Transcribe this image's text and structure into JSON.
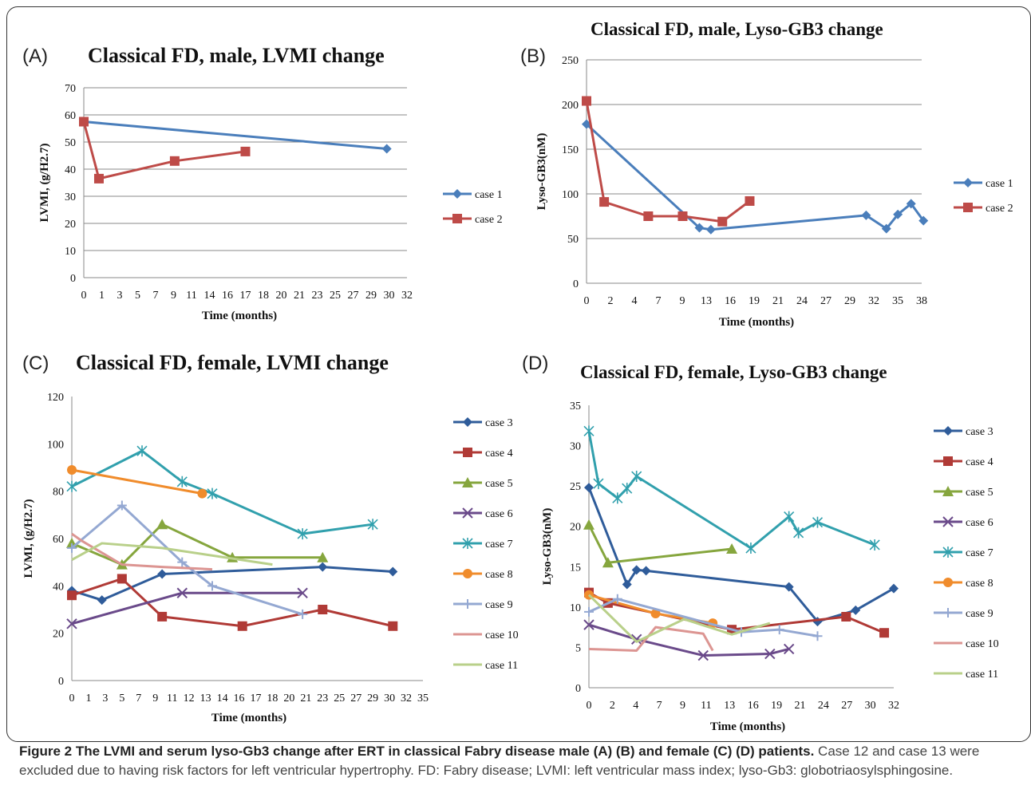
{
  "panels": [
    {
      "label": "(A)"
    },
    {
      "label": "(B)"
    },
    {
      "label": "(C)"
    },
    {
      "label": "(D)"
    }
  ],
  "caption": {
    "bold": "Figure 2 The LVMI and serum lyso-Gb3 change after ERT in classical Fabry disease male (A) (B) and female (C) (D) patients.",
    "text": " Case 12 and case 13 were excluded due to having risk factors for left ventricular hypertrophy. FD: Fabry disease; LVMI: left ventricular mass index; lyso-Gb3: globotriaosylsphingosine."
  },
  "chart_data": [
    {
      "type": "line",
      "title": "Classical FD, male, LVMI change",
      "xlabel": "Time (months)",
      "ylabel": "LVMI,  (g/H2.7)",
      "xlim": [
        0,
        32
      ],
      "ylim": [
        0,
        70
      ],
      "ytick_labels": [
        "0",
        "10",
        "20",
        "30",
        "40",
        "50",
        "60",
        "70"
      ],
      "xtick_labels": [
        "0",
        "1",
        "3",
        "5",
        "7",
        "9",
        "11",
        "14",
        "16",
        "17",
        "18",
        "20",
        "21",
        "23",
        "25",
        "27",
        "29",
        "30",
        "32"
      ],
      "grid": true,
      "legend": "right",
      "series": [
        {
          "name": "case 1",
          "color": "#4a7ebb",
          "marker": "diamond",
          "x": [
            0,
            30
          ],
          "y": [
            57.5,
            47.5
          ]
        },
        {
          "name": "case 2",
          "color": "#be4b48",
          "marker": "square",
          "x": [
            0,
            1.5,
            9,
            16
          ],
          "y": [
            57.5,
            36.5,
            43,
            46.5
          ]
        }
      ]
    },
    {
      "type": "line",
      "title": "Classical FD, male, Lyso-GB3 change",
      "xlabel": "Time (months)",
      "ylabel": "Lyso-GB3(nM)",
      "xlim": [
        0,
        38
      ],
      "ylim": [
        0,
        250
      ],
      "ytick_labels": [
        "0",
        "50",
        "100",
        "150",
        "200",
        "250"
      ],
      "xtick_labels": [
        "0",
        "2",
        "4",
        "7",
        "9",
        "13",
        "16",
        "19",
        "21",
        "24",
        "27",
        "29",
        "32",
        "35",
        "38"
      ],
      "grid": true,
      "legend": "right",
      "series": [
        {
          "name": "case 1",
          "color": "#4a7ebb",
          "marker": "diamond",
          "x": [
            0,
            12.8,
            14.1,
            31.7,
            34,
            35.3,
            36.8,
            38.2
          ],
          "y": [
            178,
            62,
            60,
            76,
            61,
            77,
            89,
            70
          ]
        },
        {
          "name": "case 2",
          "color": "#be4b48",
          "marker": "square",
          "x": [
            0,
            2,
            7,
            10.9,
            15.4,
            18.5
          ],
          "y": [
            204,
            91,
            75,
            75,
            69,
            92
          ]
        }
      ]
    },
    {
      "type": "line",
      "title": "Classical FD, female, LVMI change",
      "xlabel": "Time (months)",
      "ylabel": "LVMI,  (g/H2.7)",
      "xlim": [
        0,
        35
      ],
      "ylim": [
        0,
        120
      ],
      "ytick_labels": [
        "0",
        "20",
        "40",
        "60",
        "80",
        "100",
        "120"
      ],
      "xtick_labels": [
        "0",
        "1",
        "3",
        "5",
        "7",
        "9",
        "11",
        "12",
        "13",
        "14",
        "16",
        "17",
        "18",
        "20",
        "21",
        "23",
        "25",
        "27",
        "29",
        "30",
        "32",
        "35"
      ],
      "grid": false,
      "legend": "right",
      "series": [
        {
          "name": "case 3",
          "color": "#2f5c9a",
          "marker": "diamond",
          "x": [
            0,
            3,
            9,
            25,
            32
          ],
          "y": [
            38,
            34,
            45,
            48,
            46
          ]
        },
        {
          "name": "case 4",
          "color": "#b03a36",
          "marker": "square",
          "x": [
            0,
            5,
            9,
            17,
            25,
            32
          ],
          "y": [
            36,
            43,
            27,
            23,
            30,
            23
          ]
        },
        {
          "name": "case 5",
          "color": "#86a63e",
          "marker": "triangle",
          "x": [
            0,
            5,
            9,
            16,
            25
          ],
          "y": [
            58,
            49,
            66,
            52,
            52
          ]
        },
        {
          "name": "case 6",
          "color": "#6a4a8a",
          "marker": "x",
          "x": [
            0,
            11,
            23
          ],
          "y": [
            24,
            37,
            37
          ]
        },
        {
          "name": "case 7",
          "color": "#31a0ad",
          "marker": "star",
          "x": [
            0,
            7,
            11,
            14,
            23,
            30
          ],
          "y": [
            82,
            97,
            84,
            79,
            62,
            66
          ]
        },
        {
          "name": "case 8",
          "color": "#f08c2c",
          "marker": "circle",
          "x": [
            0,
            13
          ],
          "y": [
            89,
            79
          ]
        },
        {
          "name": "case 9",
          "color": "#94a8d2",
          "marker": "plus",
          "x": [
            0,
            5,
            11,
            14,
            23
          ],
          "y": [
            56,
            74,
            50,
            40,
            28
          ]
        },
        {
          "name": "case 10",
          "color": "#dc9592",
          "marker": "none",
          "x": [
            0,
            1,
            5,
            9,
            14
          ],
          "y": [
            62,
            59,
            49,
            48,
            47
          ]
        },
        {
          "name": "case 11",
          "color": "#b9d08a",
          "marker": "none",
          "x": [
            0,
            3,
            9,
            20
          ],
          "y": [
            51,
            58,
            56,
            49
          ]
        }
      ]
    },
    {
      "type": "line",
      "title": "Classical FD, female, Lyso-GB3 change",
      "xlabel": "Time (months)",
      "ylabel": "Lyso-GB3(nM)",
      "xlim": [
        0,
        32
      ],
      "ylim": [
        0,
        35
      ],
      "ytick_labels": [
        "0",
        "5",
        "10",
        "15",
        "20",
        "25",
        "30",
        "35"
      ],
      "xtick_labels": [
        "0",
        "2",
        "4",
        "7",
        "9",
        "11",
        "13",
        "16",
        "19",
        "21",
        "24",
        "27",
        "30",
        "32"
      ],
      "grid": false,
      "legend": "right",
      "series": [
        {
          "name": "case 3",
          "color": "#2f5c9a",
          "marker": "diamond",
          "x": [
            0,
            4,
            5,
            6,
            21,
            24,
            28,
            32
          ],
          "y": [
            24.8,
            12.8,
            14.6,
            14.5,
            12.5,
            8.2,
            9.6,
            12.3
          ]
        },
        {
          "name": "case 4",
          "color": "#b03a36",
          "marker": "square",
          "x": [
            0,
            2,
            15,
            27,
            31
          ],
          "y": [
            11.8,
            10.5,
            7.2,
            8.8,
            6.8
          ]
        },
        {
          "name": "case 5",
          "color": "#86a63e",
          "marker": "triangle",
          "x": [
            0,
            2,
            15
          ],
          "y": [
            20.2,
            15.5,
            17.2
          ]
        },
        {
          "name": "case 6",
          "color": "#6a4a8a",
          "marker": "x",
          "x": [
            0,
            5,
            12,
            19,
            21
          ],
          "y": [
            7.8,
            6.0,
            4.0,
            4.2,
            4.8
          ]
        },
        {
          "name": "case 7",
          "color": "#31a0ad",
          "marker": "star",
          "x": [
            0,
            1,
            3,
            4,
            5,
            17,
            21,
            22,
            24,
            30
          ],
          "y": [
            31.8,
            25.3,
            23.5,
            24.7,
            26.2,
            17.3,
            21.2,
            19.2,
            20.5,
            17.7
          ]
        },
        {
          "name": "case 8",
          "color": "#f08c2c",
          "marker": "circle",
          "x": [
            0,
            7,
            13
          ],
          "y": [
            11.5,
            9.2,
            8.0
          ]
        },
        {
          "name": "case 9",
          "color": "#94a8d2",
          "marker": "plus",
          "x": [
            0,
            3,
            16,
            20,
            24
          ],
          "y": [
            9.4,
            11.0,
            6.9,
            7.2,
            6.4
          ]
        },
        {
          "name": "case 10",
          "color": "#dc9592",
          "marker": "none",
          "x": [
            0,
            5,
            7,
            12,
            13
          ],
          "y": [
            4.8,
            4.6,
            7.5,
            6.7,
            4.6
          ]
        },
        {
          "name": "case 11",
          "color": "#b9d08a",
          "marker": "none",
          "x": [
            0,
            5,
            10,
            15,
            19
          ],
          "y": [
            11.5,
            5.7,
            8.5,
            6.6,
            8.0
          ]
        }
      ]
    }
  ]
}
